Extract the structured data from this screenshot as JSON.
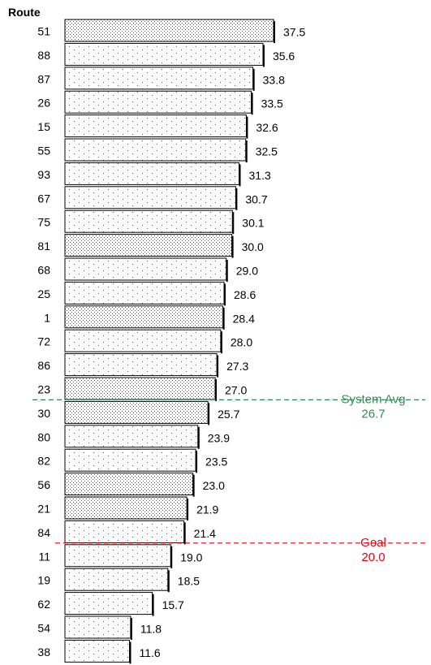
{
  "chart_data": {
    "type": "bar",
    "orientation": "horizontal",
    "category_axis_title": "Route",
    "categories": [
      "51",
      "88",
      "87",
      "26",
      "15",
      "55",
      "93",
      "67",
      "75",
      "81",
      "68",
      "25",
      "1",
      "72",
      "86",
      "23",
      "30",
      "80",
      "82",
      "56",
      "21",
      "84",
      "11",
      "19",
      "62",
      "54",
      "38"
    ],
    "values": [
      37.5,
      35.6,
      33.8,
      33.5,
      32.6,
      32.5,
      31.3,
      30.7,
      30.1,
      30.0,
      29.0,
      28.6,
      28.4,
      28.0,
      27.3,
      27.0,
      25.7,
      23.9,
      23.5,
      23.0,
      21.9,
      21.4,
      19.0,
      18.5,
      15.7,
      11.8,
      11.6
    ],
    "value_labels": [
      "37.5",
      "35.6",
      "33.8",
      "33.5",
      "32.6",
      "32.5",
      "31.3",
      "30.7",
      "30.1",
      "30.0",
      "29.0",
      "28.6",
      "28.4",
      "28.0",
      "27.3",
      "27.0",
      "25.7",
      "23.9",
      "23.5",
      "23.0",
      "21.9",
      "21.4",
      "19.0",
      "18.5",
      "15.7",
      "11.8",
      "11.6"
    ],
    "pattern": [
      "dense",
      "sparse",
      "sparse",
      "sparse",
      "sparse",
      "sparse",
      "sparse",
      "sparse",
      "sparse",
      "dense",
      "sparse",
      "sparse",
      "dense",
      "sparse",
      "sparse",
      "dense",
      "dense",
      "sparse",
      "sparse",
      "dense",
      "dense",
      "sparse",
      "sparse",
      "sparse",
      "sparse",
      "sparse",
      "sparse"
    ],
    "xlim": [
      0,
      37.5
    ],
    "reference_lines": [
      {
        "label": "System Avg",
        "value_label": "26.7",
        "value": 26.7,
        "color": "#2e8b57"
      },
      {
        "label": "Goal",
        "value_label": "20.0",
        "value": 20.0,
        "color": "#e8000b"
      }
    ],
    "grid": false,
    "legend": "none"
  }
}
